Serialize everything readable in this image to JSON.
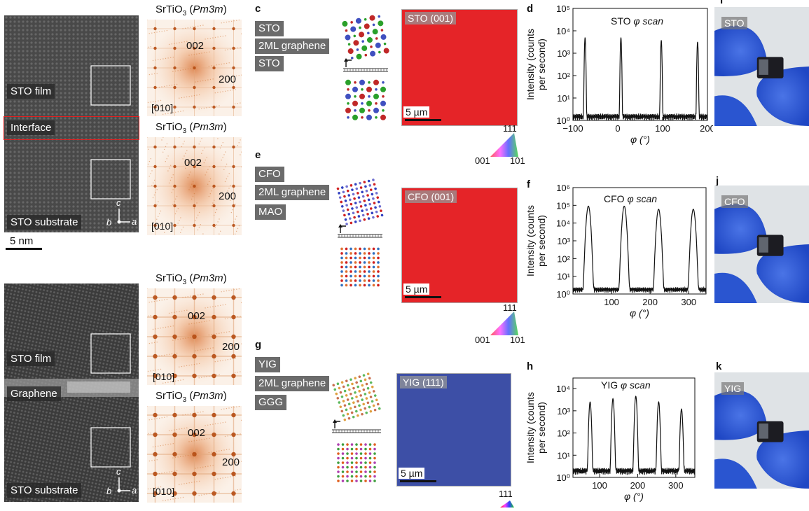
{
  "panel_a": {
    "labels": {
      "film": "STO film",
      "interface": "Interface",
      "substrate": "STO substrate"
    },
    "axes": {
      "c": "c",
      "b": "b",
      "a": "a"
    },
    "scale_bar": "5 nm",
    "fft_top": {
      "formula": "SrTiO",
      "sub": "3",
      "group": "Pm3m",
      "spot1": "002",
      "spot2": "200",
      "zone": "[010]"
    },
    "fft_bottom": {
      "formula": "SrTiO",
      "sub": "3",
      "group": "Pm3m",
      "spot1": "002",
      "spot2": "200",
      "zone": "[010]"
    }
  },
  "panel_b": {
    "labels": {
      "film": "STO film",
      "interface": "Graphene",
      "substrate": "STO substrate"
    },
    "axes": {
      "c": "c",
      "b": "b",
      "a": "a"
    },
    "fft_top": {
      "formula": "SrTiO",
      "sub": "3",
      "group": "Pm3m",
      "spot1": "002",
      "spot2": "200",
      "zone": "[010]"
    },
    "fft_bottom": {
      "formula": "SrTiO",
      "sub": "3",
      "group": "Pm3m",
      "spot1": "002",
      "spot2": "200",
      "zone": "[010]"
    }
  },
  "panel_c": {
    "letter": "c",
    "layers": [
      "STO",
      "2ML graphene",
      "STO"
    ],
    "map_label": "STO (001)",
    "scale_bar": "5 µm",
    "map_color": "#e52428"
  },
  "panel_e": {
    "letter": "e",
    "layers": [
      "CFO",
      "2ML graphene",
      "MAO"
    ],
    "map_label": "CFO (001)",
    "scale_bar": "5 µm",
    "map_color": "#e52428"
  },
  "panel_g": {
    "letter": "g",
    "layers": [
      "YIG",
      "2ML graphene",
      "GGG"
    ],
    "map_label": "YIG (111)",
    "scale_bar": "5 µm",
    "map_color": "#3d4fa6"
  },
  "ipf_key": {
    "top": "111",
    "left": "001",
    "right": "101"
  },
  "panel_d": {
    "letter": "d",
    "title": "STO",
    "scan": "φ scan",
    "ylabel": "Intensity (counts per second)",
    "xlabel": "φ (°)"
  },
  "panel_f": {
    "letter": "f",
    "title": "CFO",
    "scan": "φ scan",
    "ylabel": "Intensity (counts per second)",
    "xlabel": "φ (°)"
  },
  "panel_h": {
    "letter": "h",
    "title": "YIG",
    "scan": "φ scan",
    "ylabel": "Intensity (counts per second)",
    "xlabel": "φ (°)"
  },
  "panel_i": {
    "letter": "i",
    "label": "STO"
  },
  "panel_j": {
    "letter": "j",
    "label": "CFO"
  },
  "panel_k": {
    "letter": "k",
    "label": "YIG"
  },
  "chart_data": [
    {
      "type": "line",
      "title": "STO φ scan",
      "xlabel": "φ (°)",
      "ylabel": "Intensity (counts per second)",
      "yscale": "log",
      "xlim": [
        -100,
        200
      ],
      "ylim": [
        1,
        100000
      ],
      "xticks": [
        -100,
        0,
        100,
        200
      ],
      "yticks": [
        1,
        10,
        100,
        1000,
        10000,
        100000
      ],
      "ytick_labels": [
        "10⁰",
        "10¹",
        "10²",
        "10³",
        "10⁴",
        "10⁵"
      ],
      "baseline": 1.5,
      "peaks": [
        {
          "x": -73,
          "y": 5000,
          "w": 1.2
        },
        {
          "x": 7,
          "y": 5000,
          "w": 1.2
        },
        {
          "x": 97,
          "y": 3800,
          "w": 1.2
        },
        {
          "x": 178,
          "y": 3200,
          "w": 1.2
        }
      ]
    },
    {
      "type": "line",
      "title": "CFO φ scan",
      "xlabel": "φ (°)",
      "ylabel": "Intensity (counts per second)",
      "yscale": "log",
      "xlim": [
        0,
        345
      ],
      "ylim": [
        1,
        1000000
      ],
      "xticks": [
        100,
        200,
        300
      ],
      "yticks": [
        1,
        10,
        100,
        1000,
        10000,
        100000,
        1000000
      ],
      "ytick_labels": [
        "10⁰",
        "10¹",
        "10²",
        "10³",
        "10⁴",
        "10⁵",
        "10⁶"
      ],
      "baseline": 1.8,
      "peaks": [
        {
          "x": 40,
          "y": 90000,
          "w": 4
        },
        {
          "x": 133,
          "y": 90000,
          "w": 4
        },
        {
          "x": 222,
          "y": 60000,
          "w": 4
        },
        {
          "x": 312,
          "y": 60000,
          "w": 4
        }
      ]
    },
    {
      "type": "line",
      "title": "YIG φ scan",
      "xlabel": "φ (°)",
      "ylabel": "Intensity (counts per second)",
      "yscale": "log",
      "xlim": [
        30,
        350
      ],
      "ylim": [
        1,
        30000
      ],
      "xticks": [
        100,
        200,
        300
      ],
      "yticks": [
        1,
        10,
        100,
        1000,
        10000
      ],
      "ytick_labels": [
        "10⁰",
        "10¹",
        "10²",
        "10³",
        "10⁴"
      ],
      "baseline": 2,
      "peaks": [
        {
          "x": 75,
          "y": 2500,
          "w": 2.5
        },
        {
          "x": 135,
          "y": 3500,
          "w": 2.5
        },
        {
          "x": 195,
          "y": 4500,
          "w": 2.5
        },
        {
          "x": 255,
          "y": 2500,
          "w": 2.5
        },
        {
          "x": 315,
          "y": 1200,
          "w": 2.5
        }
      ]
    }
  ]
}
